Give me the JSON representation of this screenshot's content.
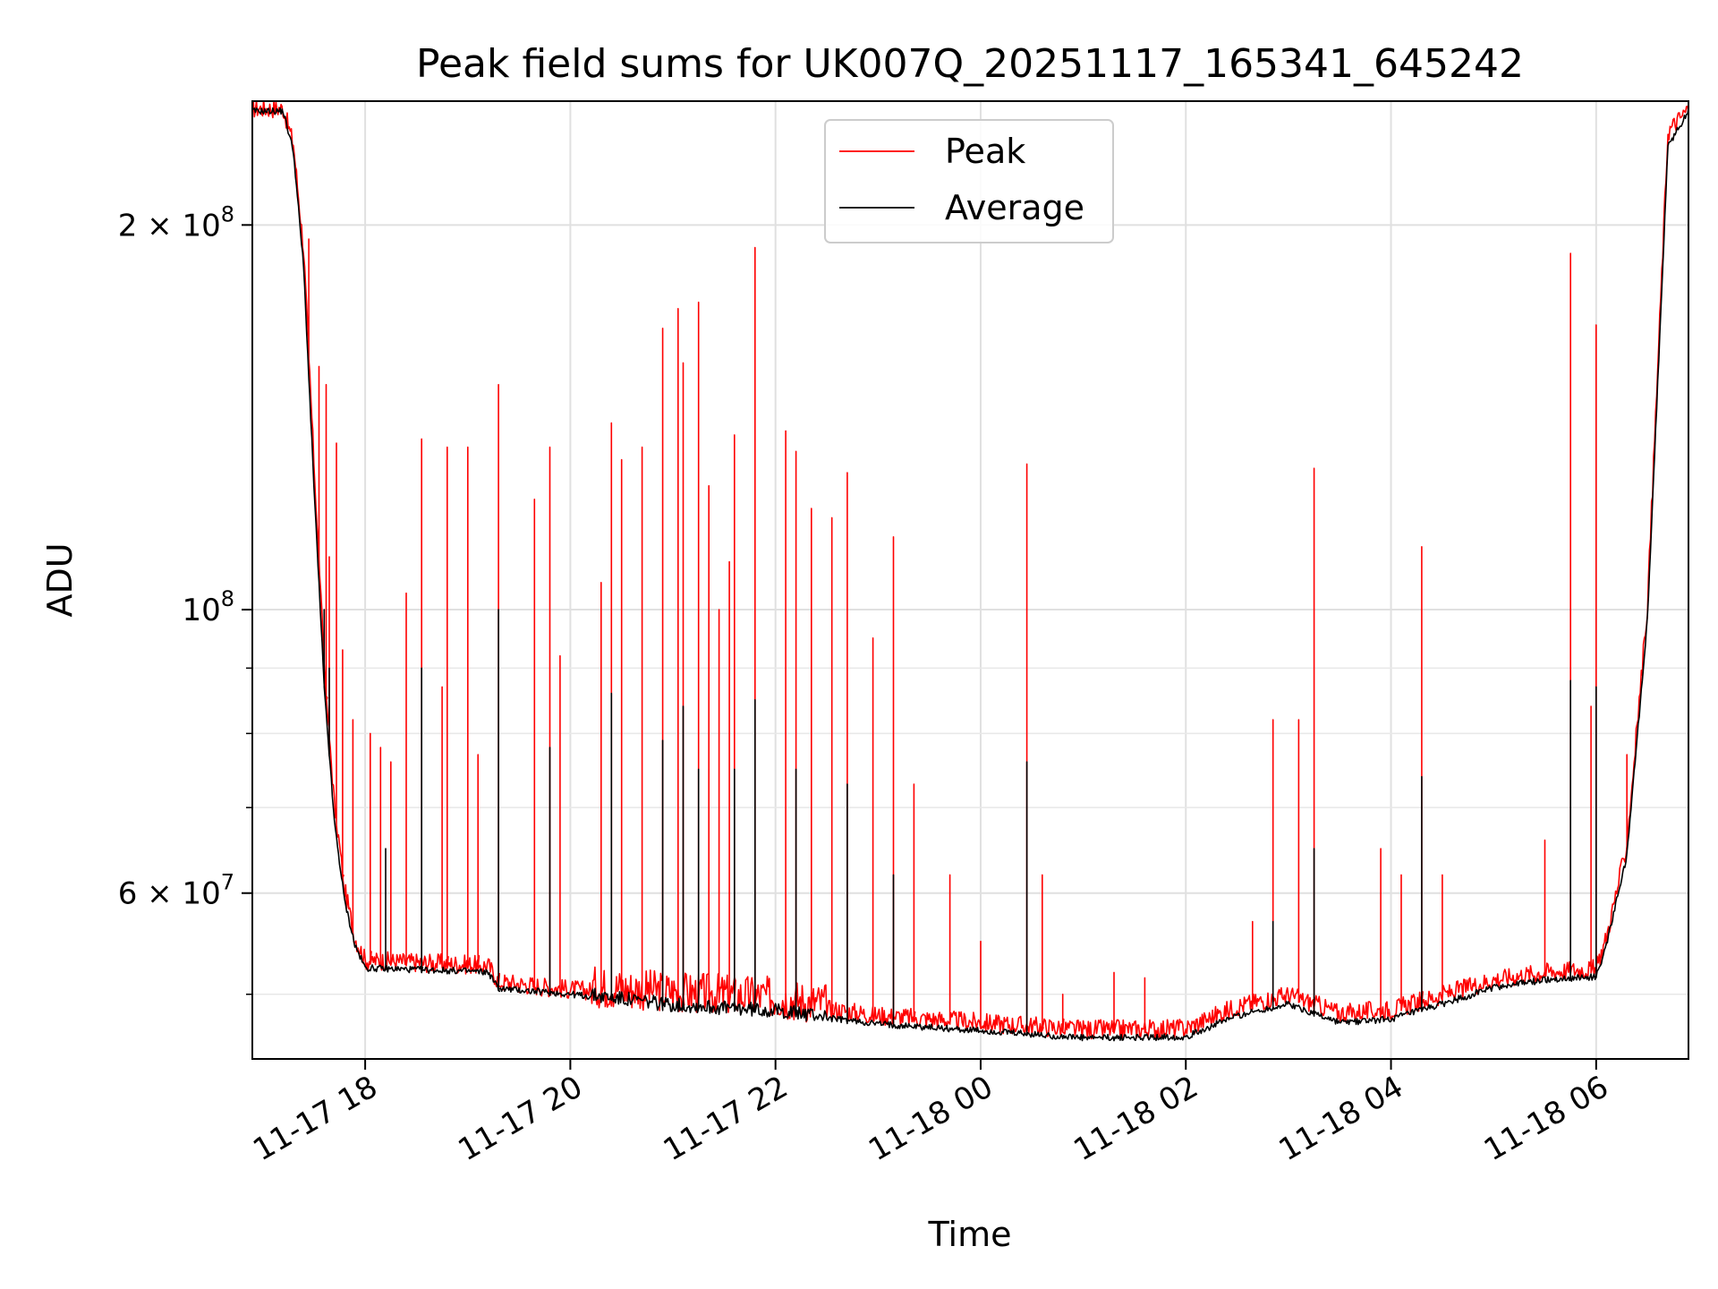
{
  "chart_data": {
    "type": "line",
    "title": "Peak field sums for UK007Q_20251117_165341_645242",
    "xlabel": "Time",
    "ylabel": "ADU",
    "yscale": "log",
    "xlim_hours": [
      16.9,
      30.9
    ],
    "ylim": [
      44500000,
      250000000
    ],
    "x_ticks": [
      {
        "hour": 18,
        "label": "11-17 18"
      },
      {
        "hour": 20,
        "label": "11-17 20"
      },
      {
        "hour": 22,
        "label": "11-17 22"
      },
      {
        "hour": 24,
        "label": "11-18 00"
      },
      {
        "hour": 26,
        "label": "11-18 02"
      },
      {
        "hour": 28,
        "label": "11-18 04"
      },
      {
        "hour": 30,
        "label": "11-18 06"
      }
    ],
    "y_ticks_major": [
      {
        "value": 60000000,
        "mantissa": "6",
        "times": "×",
        "base": "10",
        "exp": "7"
      },
      {
        "value": 100000000,
        "mantissa": "",
        "times": "",
        "base": "10",
        "exp": "8"
      },
      {
        "value": 200000000,
        "mantissa": "2",
        "times": "×",
        "base": "10",
        "exp": "8"
      }
    ],
    "y_ticks_minor": [
      50000000,
      70000000,
      80000000,
      90000000
    ],
    "legend": {
      "position": "upper-center",
      "entries": [
        "Peak",
        "Average"
      ]
    },
    "grid": true,
    "series": [
      {
        "name": "Peak",
        "color": "#ff0000",
        "baseline_points": [
          [
            16.9,
            245000000
          ],
          [
            17.2,
            245000000
          ],
          [
            17.3,
            230000000
          ],
          [
            17.4,
            190000000
          ],
          [
            17.5,
            130000000
          ],
          [
            17.6,
            90000000
          ],
          [
            17.7,
            70000000
          ],
          [
            17.8,
            60000000
          ],
          [
            17.9,
            55000000
          ],
          [
            18.0,
            52800000
          ],
          [
            19.0,
            52400000
          ],
          [
            19.2,
            52300000
          ],
          [
            19.3,
            50800000
          ],
          [
            20.0,
            50100000
          ],
          [
            21.0,
            49500000
          ],
          [
            22.0,
            49000000
          ],
          [
            23.0,
            47800000
          ],
          [
            24.0,
            47200000
          ],
          [
            25.0,
            46600000
          ],
          [
            26.0,
            46700000
          ],
          [
            26.5,
            48600000
          ],
          [
            27.0,
            49600000
          ],
          [
            27.5,
            48000000
          ],
          [
            28.0,
            48300000
          ],
          [
            28.5,
            49600000
          ],
          [
            29.0,
            51000000
          ],
          [
            29.5,
            51700000
          ],
          [
            30.0,
            52000000
          ],
          [
            30.1,
            55000000
          ],
          [
            30.3,
            65000000
          ],
          [
            30.5,
            100000000
          ],
          [
            30.7,
            235000000
          ],
          [
            30.9,
            245000000
          ]
        ],
        "spikes": [
          [
            17.45,
            195000000
          ],
          [
            17.55,
            155000000
          ],
          [
            17.62,
            150000000
          ],
          [
            17.65,
            110000000
          ],
          [
            17.72,
            135000000
          ],
          [
            17.78,
            93000000
          ],
          [
            17.88,
            82000000
          ],
          [
            18.05,
            80000000
          ],
          [
            18.15,
            78000000
          ],
          [
            18.25,
            76000000
          ],
          [
            18.4,
            103000000
          ],
          [
            18.55,
            136000000
          ],
          [
            18.75,
            87000000
          ],
          [
            18.8,
            134000000
          ],
          [
            19.0,
            134000000
          ],
          [
            19.1,
            77000000
          ],
          [
            19.3,
            150000000
          ],
          [
            19.65,
            122000000
          ],
          [
            19.8,
            134000000
          ],
          [
            19.9,
            92000000
          ],
          [
            20.3,
            105000000
          ],
          [
            20.4,
            140000000
          ],
          [
            20.5,
            131000000
          ],
          [
            20.7,
            134000000
          ],
          [
            20.9,
            166000000
          ],
          [
            21.05,
            172000000
          ],
          [
            21.1,
            156000000
          ],
          [
            21.25,
            174000000
          ],
          [
            21.35,
            125000000
          ],
          [
            21.45,
            100000000
          ],
          [
            21.55,
            109000000
          ],
          [
            21.6,
            137000000
          ],
          [
            21.8,
            192000000
          ],
          [
            22.1,
            138000000
          ],
          [
            22.2,
            133000000
          ],
          [
            22.35,
            120000000
          ],
          [
            22.55,
            118000000
          ],
          [
            22.7,
            128000000
          ],
          [
            22.95,
            95000000
          ],
          [
            23.15,
            114000000
          ],
          [
            23.35,
            73000000
          ],
          [
            23.7,
            62000000
          ],
          [
            24.0,
            55000000
          ],
          [
            24.45,
            130000000
          ],
          [
            24.6,
            62000000
          ],
          [
            24.8,
            50000000
          ],
          [
            25.3,
            52000000
          ],
          [
            25.6,
            51500000
          ],
          [
            26.65,
            57000000
          ],
          [
            26.85,
            82000000
          ],
          [
            27.1,
            82000000
          ],
          [
            27.25,
            129000000
          ],
          [
            27.9,
            65000000
          ],
          [
            28.1,
            62000000
          ],
          [
            28.3,
            112000000
          ],
          [
            28.5,
            62000000
          ],
          [
            29.5,
            66000000
          ],
          [
            29.75,
            190000000
          ],
          [
            29.95,
            84000000
          ],
          [
            30.0,
            167000000
          ],
          [
            30.3,
            77000000
          ]
        ]
      },
      {
        "name": "Average",
        "color": "#000000",
        "baseline_points": [
          [
            16.9,
            245000000
          ],
          [
            17.2,
            245000000
          ],
          [
            17.3,
            228000000
          ],
          [
            17.4,
            185000000
          ],
          [
            17.5,
            125000000
          ],
          [
            17.6,
            87000000
          ],
          [
            17.7,
            68000000
          ],
          [
            17.8,
            59000000
          ],
          [
            17.9,
            54500000
          ],
          [
            18.0,
            52300000
          ],
          [
            19.0,
            52000000
          ],
          [
            19.2,
            51900000
          ],
          [
            19.3,
            50400000
          ],
          [
            20.0,
            49900000
          ],
          [
            21.0,
            48800000
          ],
          [
            22.0,
            48300000
          ],
          [
            23.0,
            47300000
          ],
          [
            24.0,
            46700000
          ],
          [
            25.0,
            46100000
          ],
          [
            26.0,
            46200000
          ],
          [
            26.5,
            48000000
          ],
          [
            27.0,
            49000000
          ],
          [
            27.5,
            47400000
          ],
          [
            28.0,
            47700000
          ],
          [
            28.5,
            49000000
          ],
          [
            29.0,
            50500000
          ],
          [
            29.5,
            51200000
          ],
          [
            30.0,
            51500000
          ],
          [
            30.1,
            54500000
          ],
          [
            30.3,
            64000000
          ],
          [
            30.5,
            98000000
          ],
          [
            30.7,
            230000000
          ],
          [
            30.9,
            245000000
          ]
        ],
        "spikes": [
          [
            17.6,
            100000000
          ],
          [
            17.65,
            90000000
          ],
          [
            18.2,
            65000000
          ],
          [
            18.55,
            90000000
          ],
          [
            19.3,
            100000000
          ],
          [
            19.8,
            78000000
          ],
          [
            20.4,
            86000000
          ],
          [
            20.9,
            79000000
          ],
          [
            21.1,
            84000000
          ],
          [
            21.25,
            75000000
          ],
          [
            21.6,
            75000000
          ],
          [
            21.8,
            85000000
          ],
          [
            22.2,
            75000000
          ],
          [
            22.7,
            73000000
          ],
          [
            23.15,
            62000000
          ],
          [
            24.45,
            76000000
          ],
          [
            26.85,
            57000000
          ],
          [
            27.25,
            65000000
          ],
          [
            28.3,
            74000000
          ],
          [
            29.75,
            88000000
          ],
          [
            30.0,
            87000000
          ]
        ]
      }
    ]
  }
}
